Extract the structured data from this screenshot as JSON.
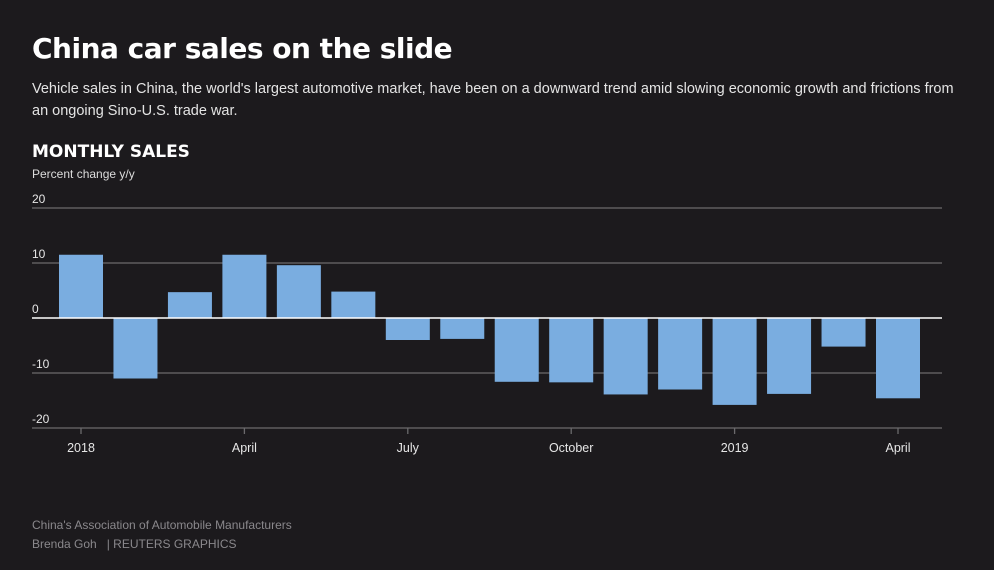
{
  "header": {
    "title": "China car sales on the slide",
    "subtitle": "Vehicle sales in China, the world's largest automotive market, have been on a downward trend amid slowing economic growth and frictions from an ongoing Sino-U.S. trade war."
  },
  "chart_data": {
    "type": "bar",
    "title": "MONTHLY SALES",
    "ylabel": "Percent change y/y",
    "xlabel": "",
    "ylim": [
      -20,
      20
    ],
    "yticks": [
      20,
      10,
      0,
      -10,
      -20
    ],
    "categories": [
      "2018-01",
      "2018-02",
      "2018-03",
      "2018-04",
      "2018-05",
      "2018-06",
      "2018-07",
      "2018-08",
      "2018-09",
      "2018-10",
      "2018-11",
      "2018-12",
      "2019-01",
      "2019-02",
      "2019-03",
      "2019-04"
    ],
    "values": [
      11.5,
      -11.0,
      4.7,
      11.5,
      9.6,
      4.8,
      -4.0,
      -3.8,
      -11.6,
      -11.7,
      -13.9,
      -13.0,
      -15.8,
      -13.8,
      -5.2,
      -14.6
    ],
    "xtick_labels": [
      {
        "category": "2018-01",
        "label": "2018"
      },
      {
        "category": "2018-04",
        "label": "April"
      },
      {
        "category": "2018-07",
        "label": "July"
      },
      {
        "category": "2018-10",
        "label": "October"
      },
      {
        "category": "2019-01",
        "label": "2019"
      },
      {
        "category": "2019-04",
        "label": "April"
      }
    ],
    "grid": true,
    "colors": {
      "bar": "#7aade0",
      "grid": "#6b6a6d",
      "zero_line": "#ffffff",
      "tick_label": "#e6e6e6",
      "background": "#1c1a1d"
    }
  },
  "footer": {
    "source": "China's Association of Automobile Manufacturers",
    "author": "Brenda Goh",
    "publisher": "| REUTERS GRAPHICS"
  }
}
